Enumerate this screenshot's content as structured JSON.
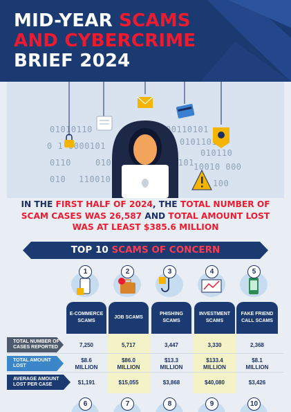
{
  "header": {
    "title_line1_white": "MID-YEAR ",
    "title_line1_red": "SCAMS",
    "title_line2_red": "AND CYBERCRIME",
    "title_line3_white": "BRIEF 2024"
  },
  "hero": {
    "binary_rows": [
      "01010110",
      "0101",
      "00110101",
      "0101",
      "0 1   0000101",
      "0 0",
      "0101101",
      "010110",
      "0110",
      "01010",
      "1101",
      "10010 000",
      "010",
      "110010",
      "100"
    ]
  },
  "intro": {
    "p1": "IN THE ",
    "p2": "FIRST HALF OF 2024",
    "p3": ", THE ",
    "p4": "TOTAL NUMBER OF SCAM CASES WAS 26,587",
    "p5": " AND ",
    "p6": "TOTAL AMOUNT LOST WAS AT LEAST $385.6 MILLION"
  },
  "banner": {
    "white": "TOP 10 ",
    "red": "SCAMS OF CONCERN"
  },
  "scams": [
    {
      "num": "1",
      "name": "E-COMMERCE SCAMS",
      "cases": "7,250",
      "lost": "$8.6 MILLION",
      "avg": "$1,191"
    },
    {
      "num": "2",
      "name": "JOB SCAMS",
      "cases": "5,717",
      "lost": "$86.0 MILLION",
      "avg": "$15,055"
    },
    {
      "num": "3",
      "name": "PHISHING SCAMS",
      "cases": "3,447",
      "lost": "$13.3 MILLION",
      "avg": "$3,868"
    },
    {
      "num": "4",
      "name": "INVESTMENT SCAMS",
      "cases": "3,330",
      "lost": "$133.4 MILLION",
      "avg": "$40,080"
    },
    {
      "num": "5",
      "name": "FAKE FRIEND CALL SCAMS",
      "cases": "2,368",
      "lost": "$8.1 MILLION",
      "avg": "$3,426"
    }
  ],
  "next_nums": [
    "6",
    "7",
    "8",
    "9",
    "10"
  ],
  "rows": {
    "cases_label": "TOTAL NUMBER OF CASES REPORTED",
    "lost_label": "TOTAL AMOUNT LOST",
    "avg_label": "AVERAGE AMOUNT LOST PER CASE"
  },
  "colors": {
    "navy": "#1b3a72",
    "red": "#ed1b2f",
    "highlight": "#f4f3c8"
  }
}
